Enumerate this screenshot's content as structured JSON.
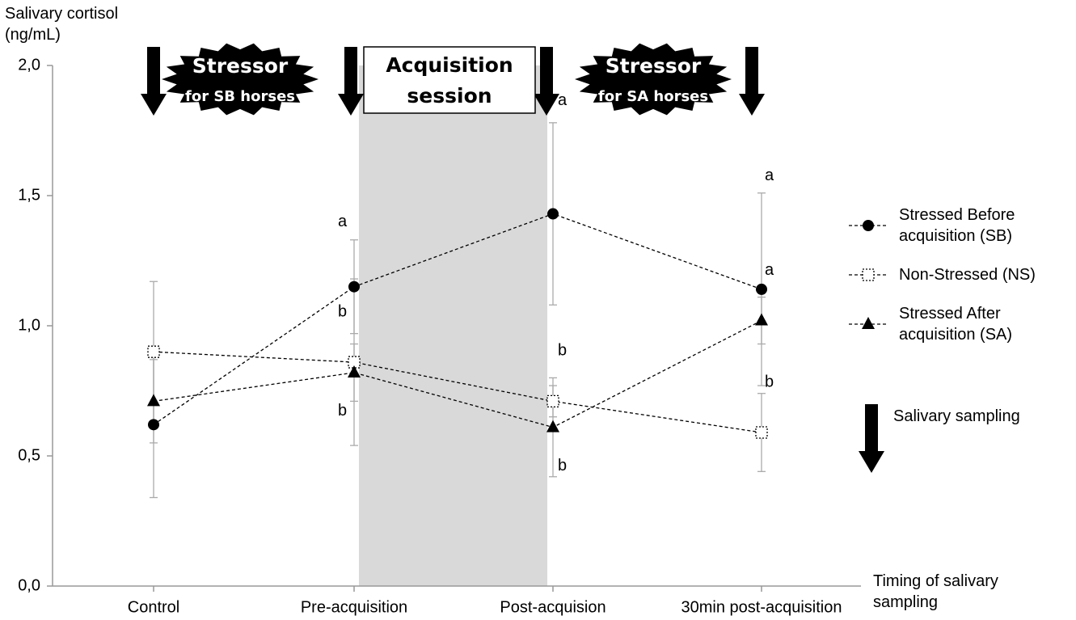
{
  "chart_data": {
    "type": "line",
    "y_label": "Salivary cortisol (ng/mL)",
    "x_label": "Timing of salivary sampling",
    "categories": [
      "Control",
      "Pre-acquisition",
      "Post-acquision",
      "30min post-acquisition"
    ],
    "ylim": [
      0,
      2
    ],
    "yticks": [
      {
        "value": 0,
        "label": "0,0"
      },
      {
        "value": 0.5,
        "label": "0,5"
      },
      {
        "value": 1,
        "label": "1,0"
      },
      {
        "value": 1.5,
        "label": "1,5"
      },
      {
        "value": 2,
        "label": "2,0"
      }
    ],
    "series": [
      {
        "name": "Stressed Before acquisition (SB)",
        "marker": "circle",
        "color": "#000000",
        "values": [
          0.62,
          1.15,
          1.43,
          1.14
        ],
        "errors": [
          0.28,
          0.18,
          0.35,
          0.37
        ],
        "letters": [
          null,
          "a",
          "a",
          "a"
        ]
      },
      {
        "name": "Non-Stressed (NS)",
        "marker": "square",
        "color": "#000000",
        "values": [
          0.9,
          0.86,
          0.71,
          0.59
        ],
        "errors": [
          0.27,
          0.32,
          0.06,
          0.15
        ],
        "letters": [
          null,
          "b",
          "b",
          "b"
        ]
      },
      {
        "name": "Stressed After acquisition (SA)",
        "marker": "triangle",
        "color": "#000000",
        "values": [
          0.71,
          0.82,
          0.61,
          1.02
        ],
        "errors": [
          0.16,
          0.11,
          0.19,
          0.09
        ],
        "letters": [
          null,
          "b",
          "b",
          "a"
        ]
      }
    ],
    "banners": {
      "stressor_sb": {
        "title": "Stressor",
        "subtitle": "for SB horses"
      },
      "acquisition": {
        "line1": "Acquisition",
        "line2": "session"
      },
      "stressor_sa": {
        "title": "Stressor",
        "subtitle": "for SA horses"
      }
    },
    "sampling_legend": "Salivary sampling"
  }
}
